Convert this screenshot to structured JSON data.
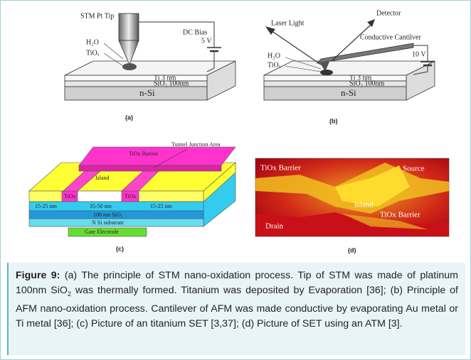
{
  "panels": {
    "a": {
      "tip": "STM Pt Tip",
      "water": "H₂O",
      "oxide": "TiOₓ",
      "bias": "DC Bias",
      "voltage": "5 V",
      "ti_layer": "Ti 3 nm",
      "sio2_layer": "SiO₂ 100nm",
      "substrate": "n-Si",
      "label": "(a)"
    },
    "b": {
      "laser": "Laser Light",
      "detector": "Detector",
      "cantilever": "Conductive Cantilver",
      "water": "H₂O",
      "oxide": "TiOₓ",
      "voltage": "10 V",
      "ti_layer": "Ti 3 nm",
      "sio2_layer": "SiO₂ 100nm",
      "substrate": "n-Si",
      "label": "(b)"
    },
    "c": {
      "junction": "Tunnel Junction Area",
      "barrier": "TiOx Barrier",
      "island": "Island",
      "oxide_left": "TiOx",
      "oxide_right": "TiOx",
      "width_left": "15-25 nm",
      "width_mid": "35-50 nm",
      "width_right": "15-25 nm",
      "sio2": "100 nm SiO₂",
      "substrate": "N Si substrate",
      "gate": "Gate Electrode",
      "label": "(c)"
    },
    "d": {
      "barrier_top": "TiOx Barrier",
      "source": "Source",
      "island": "Island",
      "barrier_bottom": "TiOx Barrier",
      "drain": "Drain",
      "label": "(d)"
    }
  },
  "caption": {
    "label": "Figure 9:",
    "text_1": "(a) The principle of STM nano-oxidation process. Tip of STM was made of platinum 100nm SiO",
    "sub": "2",
    "text_2": " was thermally formed. Titanium was deposited by Evaporation [36]; (b) Principle of AFM nano-oxidation process. Cantilever of AFM was made conductive by evaporating Au metal or Ti metal [36]; (c) Picture of an titanium SET [3,37]; (d) Picture of SET using an ATM [3]."
  }
}
